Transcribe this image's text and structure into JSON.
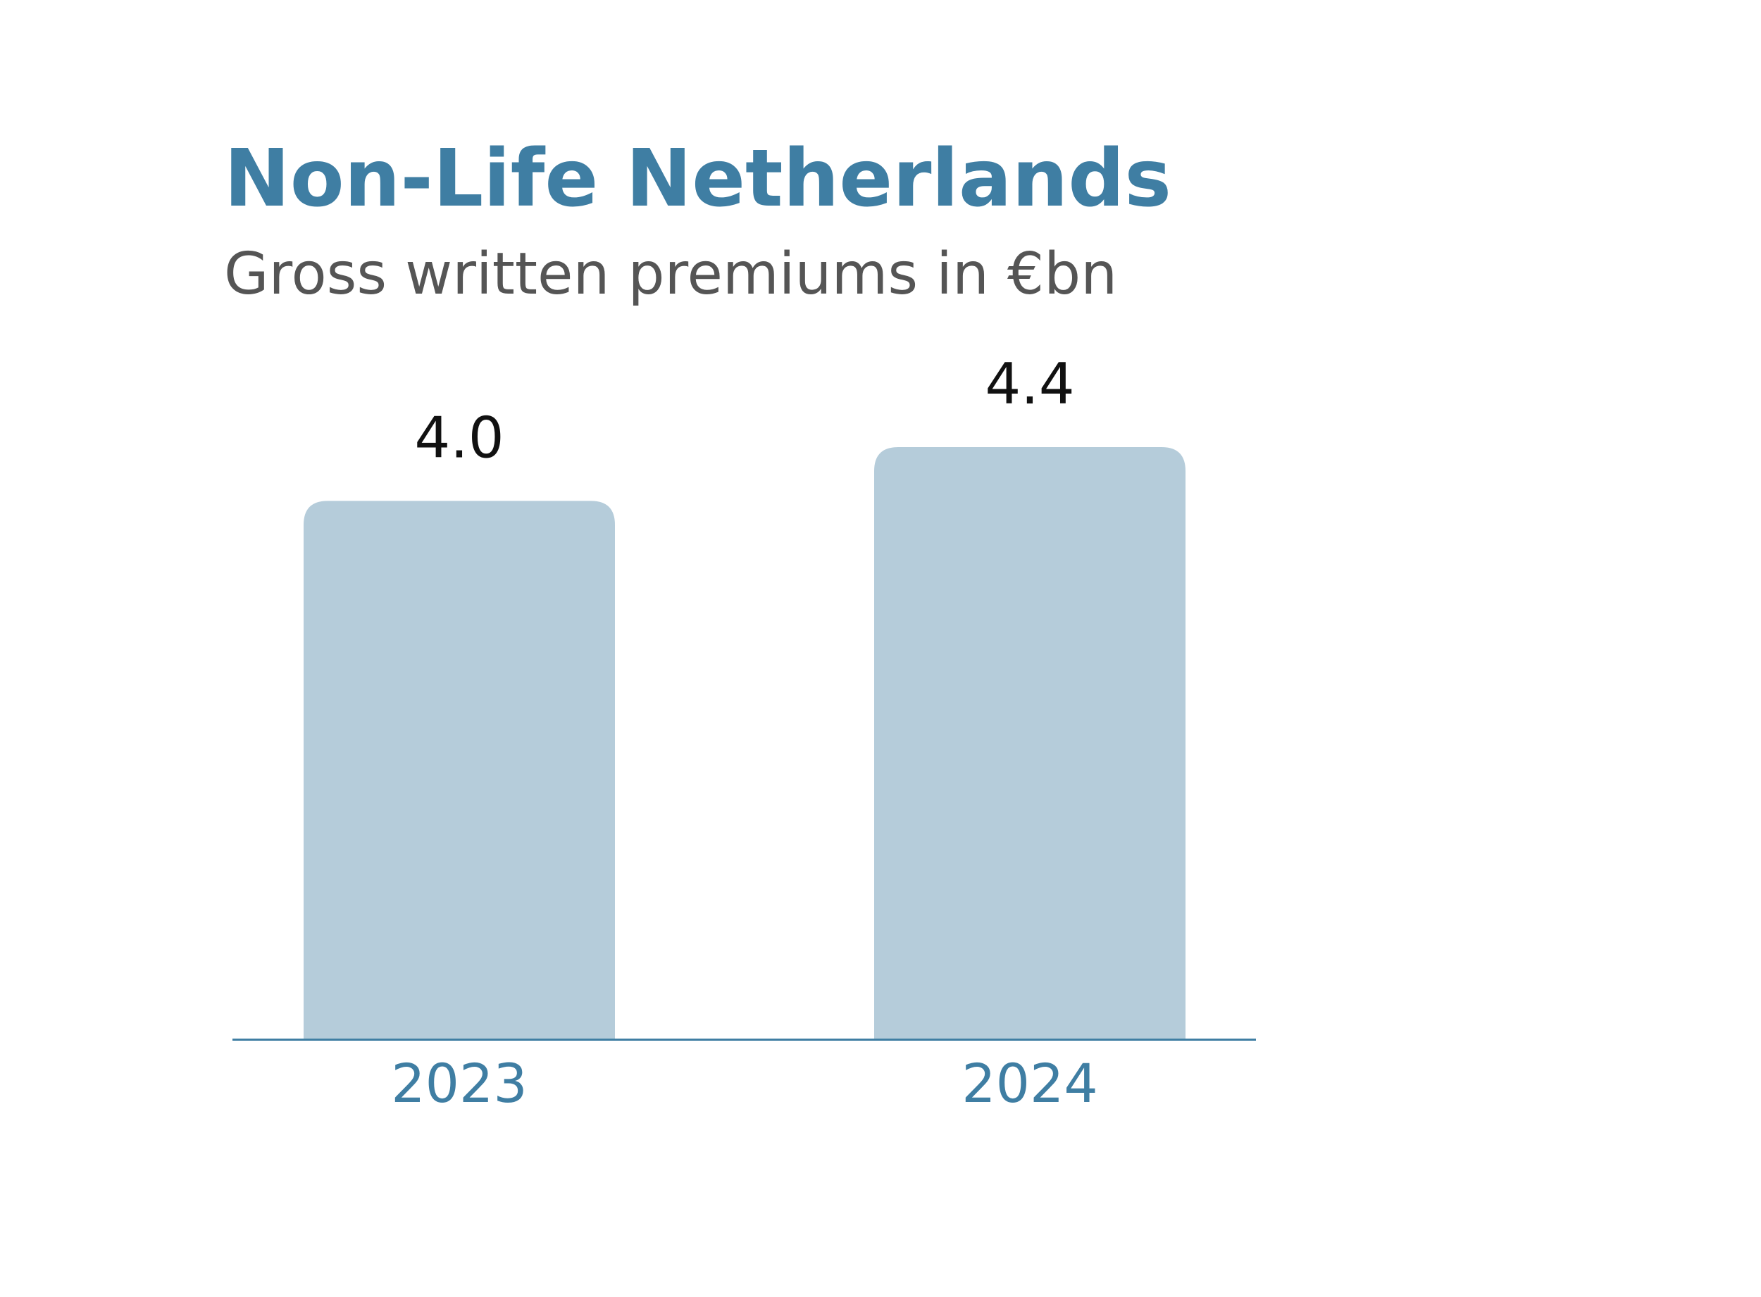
{
  "chart_data": {
    "type": "bar",
    "title": "Non-Life Netherlands",
    "subtitle": "Gross written premiums in €bn",
    "categories": [
      "2023",
      "2024"
    ],
    "values": [
      4.0,
      4.4
    ],
    "value_labels": [
      "4.0",
      "4.4"
    ],
    "ylim": [
      0,
      4.4
    ],
    "grid": false,
    "legend": "none",
    "colors": {
      "bar": "#b5ccda",
      "title": "#3f7ea3",
      "subtitle": "#555555",
      "axis": "#3f7ea3",
      "tick_label": "#3f7ea3",
      "value_label": "#111111"
    }
  }
}
